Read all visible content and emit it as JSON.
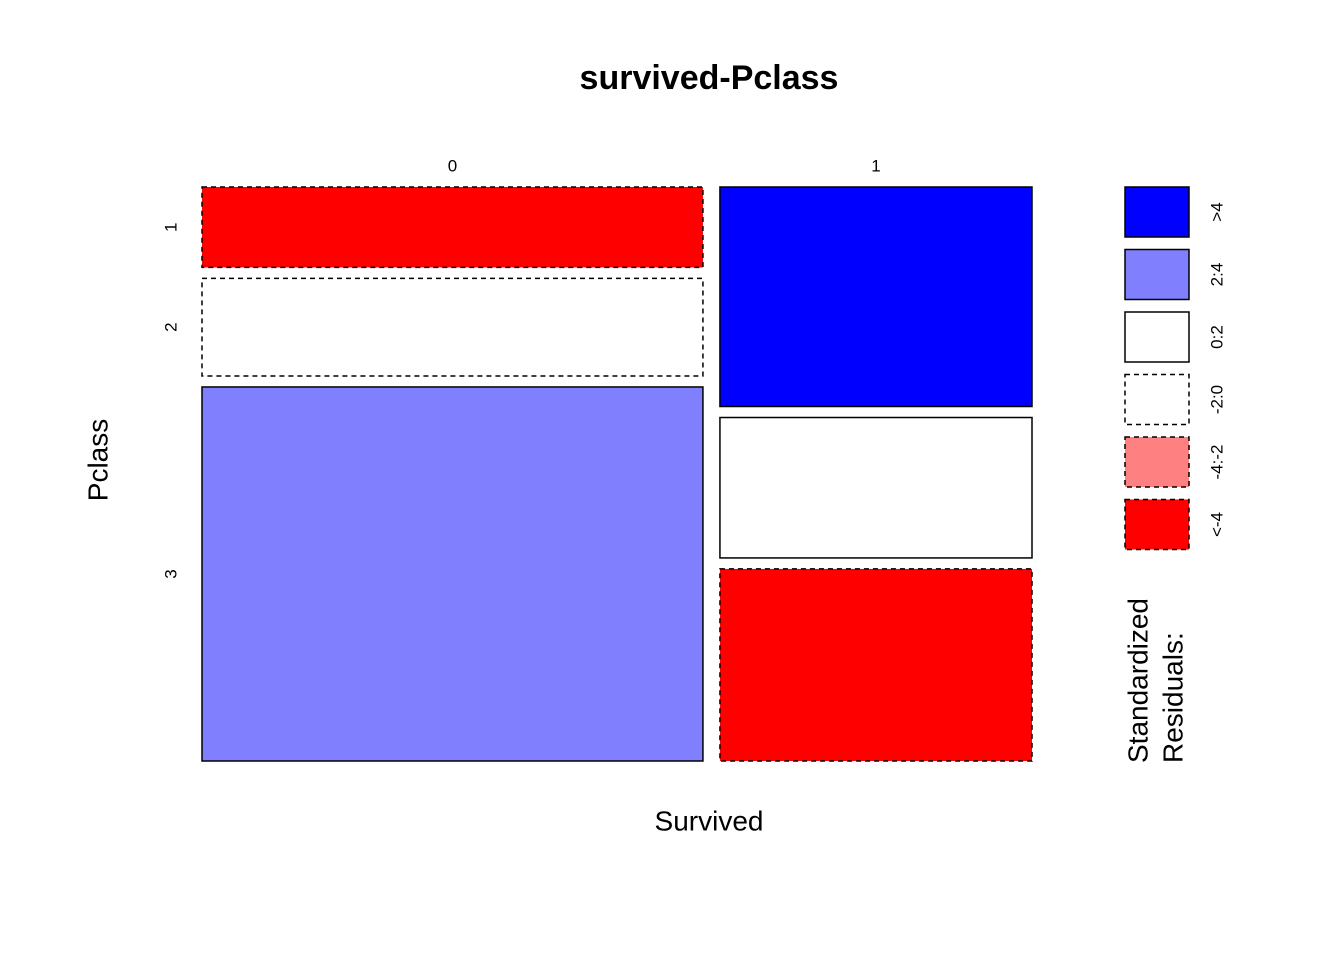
{
  "chart_data": {
    "type": "mosaic",
    "title": "survived-Pclass",
    "x_label": "Survived",
    "y_label": "Pclass",
    "categories": [
      "1",
      "2",
      "3"
    ],
    "series": [
      {
        "name": "0",
        "values": [
          80,
          97,
          372
        ],
        "colors": [
          "#ff0000",
          "#ffffff",
          "#8080ff"
        ],
        "dashed": [
          true,
          true,
          false
        ]
      },
      {
        "name": "1",
        "values": [
          136,
          87,
          119
        ],
        "colors": [
          "#0000ff",
          "#ffffff",
          "#ff0000"
        ],
        "dashed": [
          false,
          false,
          true
        ]
      }
    ],
    "legend": {
      "title": [
        "Standardized",
        "Residuals:"
      ],
      "labels": [
        ">4",
        "2:4",
        "0:2",
        "-2:0",
        "-4:-2",
        "<-4"
      ],
      "colors": [
        "#0000ff",
        "#8080ff",
        "#ffffff",
        "#ffffff",
        "#ff8080",
        "#ff0000"
      ],
      "dashed": [
        false,
        false,
        false,
        true,
        true,
        true
      ]
    }
  }
}
